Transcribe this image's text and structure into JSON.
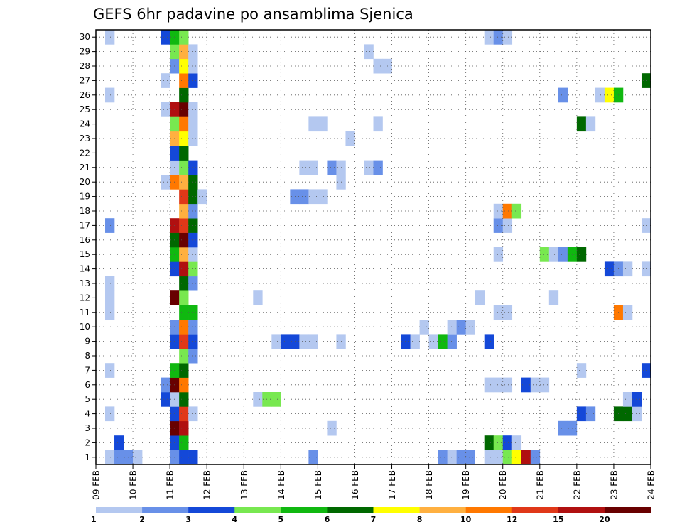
{
  "chart_data": {
    "type": "heatmap",
    "title": "GEFS 6hr padavine po ansamblima Sjenica",
    "x_tick_labels": [
      "09 FEB",
      "10 FEB",
      "11 FEB",
      "12 FEB",
      "13 FEB",
      "14 FEB",
      "15 FEB",
      "16 FEB",
      "17 FEB",
      "18 FEB",
      "19 FEB",
      "20 FEB",
      "21 FEB",
      "22 FEB",
      "23 FEB",
      "24 FEB"
    ],
    "y_tick_labels": [
      "1",
      "2",
      "3",
      "4",
      "5",
      "6",
      "7",
      "8",
      "9",
      "10",
      "11",
      "12",
      "13",
      "14",
      "15",
      "16",
      "17",
      "18",
      "19",
      "20",
      "21",
      "22",
      "23",
      "24",
      "25",
      "26",
      "27",
      "28",
      "29",
      "30"
    ],
    "xlim": [
      0,
      60
    ],
    "ylim": [
      0,
      30
    ],
    "time_step_hours": 6,
    "grid": true,
    "colorbar": {
      "position": "bottom",
      "labels": [
        "1",
        "2",
        "3",
        "4",
        "5",
        "6",
        "7",
        "8",
        "10",
        "12",
        "15",
        "20"
      ],
      "colors": [
        "#b4c8f0",
        "#6890e8",
        "#1448d8",
        "#78e850",
        "#10b810",
        "#006800",
        "#ffff00",
        "#ffb040",
        "#ff7800",
        "#e03818",
        "#b01010",
        "#680000"
      ]
    },
    "cells": [
      [
        1,
        0,
        1
      ],
      [
        2,
        0,
        2
      ],
      [
        3,
        0,
        2
      ],
      [
        4,
        0,
        1
      ],
      [
        8,
        0,
        2
      ],
      [
        9,
        0,
        3
      ],
      [
        10,
        0,
        3
      ],
      [
        23,
        0,
        2
      ],
      [
        37,
        0,
        2
      ],
      [
        38,
        0,
        1
      ],
      [
        39,
        0,
        2
      ],
      [
        40,
        0,
        2
      ],
      [
        42,
        0,
        1
      ],
      [
        43,
        0,
        1
      ],
      [
        44,
        0,
        4
      ],
      [
        45,
        0,
        7
      ],
      [
        46,
        0,
        11
      ],
      [
        47,
        0,
        2
      ],
      [
        2,
        1,
        3
      ],
      [
        8,
        1,
        3
      ],
      [
        9,
        1,
        5
      ],
      [
        42,
        1,
        6
      ],
      [
        43,
        1,
        4
      ],
      [
        44,
        1,
        3
      ],
      [
        45,
        1,
        1
      ],
      [
        8,
        2,
        12
      ],
      [
        9,
        2,
        11
      ],
      [
        25,
        2,
        1
      ],
      [
        50,
        2,
        2
      ],
      [
        51,
        2,
        2
      ],
      [
        1,
        3,
        1
      ],
      [
        8,
        3,
        3
      ],
      [
        9,
        3,
        10
      ],
      [
        10,
        3,
        1
      ],
      [
        52,
        3,
        3
      ],
      [
        53,
        3,
        2
      ],
      [
        56,
        3,
        6
      ],
      [
        57,
        3,
        6
      ],
      [
        58,
        3,
        1
      ],
      [
        7,
        4,
        3
      ],
      [
        8,
        4,
        1
      ],
      [
        9,
        4,
        6
      ],
      [
        17,
        4,
        1
      ],
      [
        18,
        4,
        4
      ],
      [
        19,
        4,
        4
      ],
      [
        57,
        4,
        1
      ],
      [
        58,
        4,
        3
      ],
      [
        7,
        5,
        2
      ],
      [
        8,
        5,
        12
      ],
      [
        9,
        5,
        9
      ],
      [
        42,
        5,
        1
      ],
      [
        43,
        5,
        1
      ],
      [
        44,
        5,
        1
      ],
      [
        46,
        5,
        3
      ],
      [
        47,
        5,
        1
      ],
      [
        48,
        5,
        1
      ],
      [
        1,
        6,
        1
      ],
      [
        8,
        6,
        5
      ],
      [
        9,
        6,
        6
      ],
      [
        52,
        6,
        1
      ],
      [
        59,
        6,
        3
      ],
      [
        9,
        7,
        4
      ],
      [
        10,
        7,
        2
      ],
      [
        8,
        8,
        3
      ],
      [
        9,
        8,
        10
      ],
      [
        10,
        8,
        3
      ],
      [
        19,
        8,
        1
      ],
      [
        20,
        8,
        3
      ],
      [
        21,
        8,
        3
      ],
      [
        22,
        8,
        1
      ],
      [
        23,
        8,
        1
      ],
      [
        26,
        8,
        1
      ],
      [
        33,
        8,
        3
      ],
      [
        34,
        8,
        1
      ],
      [
        36,
        8,
        1
      ],
      [
        37,
        8,
        5
      ],
      [
        38,
        8,
        2
      ],
      [
        42,
        8,
        3
      ],
      [
        8,
        9,
        2
      ],
      [
        9,
        9,
        9
      ],
      [
        10,
        9,
        2
      ],
      [
        35,
        9,
        1
      ],
      [
        38,
        9,
        1
      ],
      [
        39,
        9,
        2
      ],
      [
        40,
        9,
        1
      ],
      [
        1,
        10,
        1
      ],
      [
        9,
        10,
        5
      ],
      [
        10,
        10,
        5
      ],
      [
        43,
        10,
        1
      ],
      [
        44,
        10,
        1
      ],
      [
        56,
        10,
        9
      ],
      [
        57,
        10,
        1
      ],
      [
        1,
        11,
        1
      ],
      [
        8,
        11,
        12
      ],
      [
        9,
        11,
        4
      ],
      [
        17,
        11,
        1
      ],
      [
        41,
        11,
        1
      ],
      [
        49,
        11,
        1
      ],
      [
        1,
        12,
        1
      ],
      [
        9,
        12,
        6
      ],
      [
        10,
        12,
        2
      ],
      [
        8,
        13,
        3
      ],
      [
        9,
        13,
        11
      ],
      [
        10,
        13,
        4
      ],
      [
        55,
        13,
        3
      ],
      [
        56,
        13,
        2
      ],
      [
        57,
        13,
        1
      ],
      [
        59,
        13,
        1
      ],
      [
        8,
        14,
        5
      ],
      [
        9,
        14,
        8
      ],
      [
        10,
        14,
        1
      ],
      [
        43,
        14,
        1
      ],
      [
        48,
        14,
        4
      ],
      [
        49,
        14,
        1
      ],
      [
        50,
        14,
        2
      ],
      [
        51,
        14,
        5
      ],
      [
        52,
        14,
        6
      ],
      [
        8,
        15,
        6
      ],
      [
        9,
        15,
        12
      ],
      [
        10,
        15,
        3
      ],
      [
        1,
        16,
        2
      ],
      [
        8,
        16,
        11
      ],
      [
        9,
        16,
        10
      ],
      [
        10,
        16,
        6
      ],
      [
        43,
        16,
        2
      ],
      [
        44,
        16,
        1
      ],
      [
        59,
        16,
        1
      ],
      [
        9,
        17,
        8
      ],
      [
        10,
        17,
        2
      ],
      [
        43,
        17,
        1
      ],
      [
        44,
        17,
        9
      ],
      [
        45,
        17,
        4
      ],
      [
        9,
        18,
        10
      ],
      [
        10,
        18,
        6
      ],
      [
        11,
        18,
        1
      ],
      [
        21,
        18,
        2
      ],
      [
        22,
        18,
        2
      ],
      [
        23,
        18,
        1
      ],
      [
        24,
        18,
        1
      ],
      [
        7,
        19,
        1
      ],
      [
        8,
        19,
        9
      ],
      [
        9,
        19,
        8
      ],
      [
        10,
        19,
        6
      ],
      [
        26,
        19,
        1
      ],
      [
        8,
        20,
        1
      ],
      [
        9,
        20,
        4
      ],
      [
        10,
        20,
        3
      ],
      [
        22,
        20,
        1
      ],
      [
        23,
        20,
        1
      ],
      [
        25,
        20,
        2
      ],
      [
        26,
        20,
        1
      ],
      [
        29,
        20,
        1
      ],
      [
        30,
        20,
        2
      ],
      [
        8,
        21,
        3
      ],
      [
        9,
        21,
        6
      ],
      [
        8,
        22,
        8
      ],
      [
        9,
        22,
        7
      ],
      [
        10,
        22,
        1
      ],
      [
        27,
        22,
        1
      ],
      [
        8,
        23,
        4
      ],
      [
        9,
        23,
        9
      ],
      [
        10,
        23,
        1
      ],
      [
        23,
        23,
        1
      ],
      [
        24,
        23,
        1
      ],
      [
        30,
        23,
        1
      ],
      [
        52,
        23,
        6
      ],
      [
        53,
        23,
        1
      ],
      [
        7,
        24,
        1
      ],
      [
        8,
        24,
        11
      ],
      [
        9,
        24,
        12
      ],
      [
        10,
        24,
        1
      ],
      [
        1,
        25,
        1
      ],
      [
        9,
        25,
        6
      ],
      [
        50,
        25,
        2
      ],
      [
        54,
        25,
        1
      ],
      [
        55,
        25,
        7
      ],
      [
        56,
        25,
        5
      ],
      [
        7,
        26,
        1
      ],
      [
        9,
        26,
        9
      ],
      [
        10,
        26,
        3
      ],
      [
        59,
        26,
        6
      ],
      [
        8,
        27,
        2
      ],
      [
        9,
        27,
        7
      ],
      [
        10,
        27,
        1
      ],
      [
        30,
        27,
        1
      ],
      [
        31,
        27,
        1
      ],
      [
        8,
        28,
        4
      ],
      [
        9,
        28,
        8
      ],
      [
        10,
        28,
        1
      ],
      [
        29,
        28,
        1
      ],
      [
        1,
        29,
        1
      ],
      [
        7,
        29,
        3
      ],
      [
        8,
        29,
        5
      ],
      [
        9,
        29,
        4
      ],
      [
        42,
        29,
        1
      ],
      [
        43,
        29,
        2
      ],
      [
        44,
        29,
        1
      ]
    ]
  }
}
